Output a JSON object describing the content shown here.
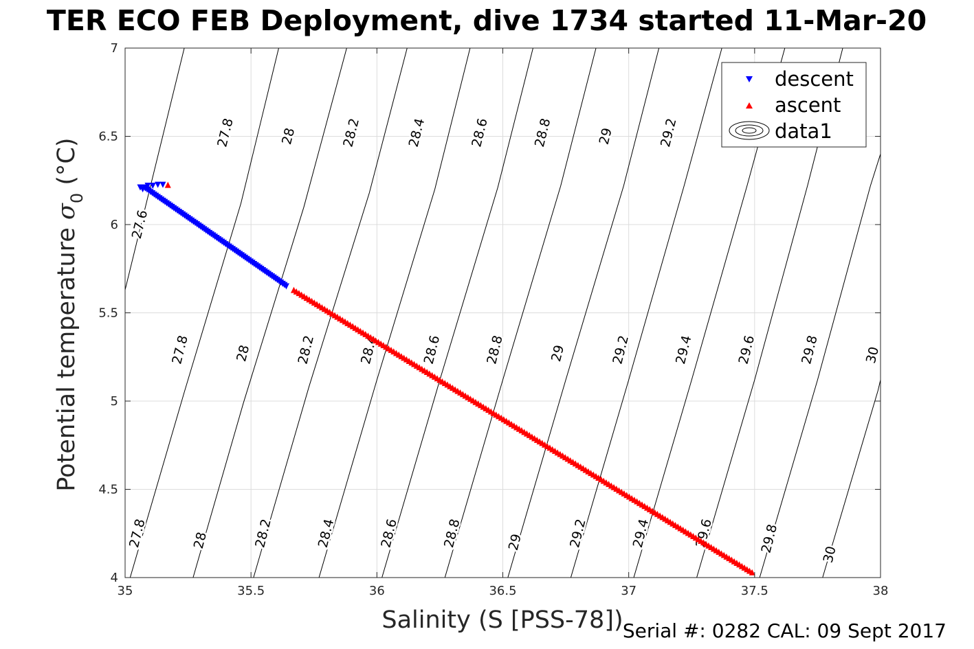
{
  "page": {
    "title": "TER ECO FEB Deployment, dive 1734 started 11-Mar-20",
    "footer": "Serial #: 0282  CAL: 09 Sept 2017"
  },
  "chart_data": {
    "type": "scatter",
    "xlabel": "Salinity (S [PSS-78])",
    "ylabel_main": "Potential temperature ",
    "ylabel_symbol": "σ",
    "ylabel_subscript": "0",
    "ylabel_unit": " (°C)",
    "xlim": [
      35,
      38
    ],
    "ylim": [
      4,
      7
    ],
    "xticks": [
      35,
      35.5,
      36,
      36.5,
      37,
      37.5,
      38
    ],
    "xtick_labels": [
      "35",
      "35.5",
      "36",
      "36.5",
      "37",
      "37.5",
      "38"
    ],
    "yticks": [
      4,
      4.5,
      5,
      5.5,
      6,
      6.5,
      7
    ],
    "ytick_labels": [
      "4",
      "4.5",
      "5",
      "5.5",
      "6",
      "6.5",
      "7"
    ],
    "grid": true,
    "legend_position": "top-right",
    "legend": [
      "descent",
      "ascent",
      "data1"
    ],
    "series": [
      {
        "name": "descent",
        "marker": "triangle-down",
        "color": "#0000ff",
        "start": [
          35.08,
          6.205
        ],
        "end": [
          35.64,
          5.65
        ],
        "count": 80,
        "surface_cluster": [
          [
            35.06,
            6.21
          ],
          [
            35.07,
            6.2
          ],
          [
            35.08,
            6.21
          ],
          [
            35.09,
            6.22
          ],
          [
            35.11,
            6.22
          ],
          [
            35.13,
            6.225
          ],
          [
            35.15,
            6.225
          ]
        ]
      },
      {
        "name": "ascent",
        "marker": "triangle-up",
        "color": "#ff0000",
        "start": [
          35.67,
          5.63
        ],
        "end": [
          37.49,
          4.03
        ],
        "count": 180,
        "surface_cluster": [
          [
            35.17,
            6.225
          ]
        ]
      }
    ],
    "contours": [
      {
        "level": "27.6",
        "points": [
          [
            35.0,
            5.63
          ],
          [
            35.235,
            7.0
          ]
        ]
      },
      {
        "level": "27.8",
        "points": [
          [
            35.02,
            4.0
          ],
          [
            35.235,
            5.05
          ],
          [
            35.46,
            6.12
          ],
          [
            35.61,
            7.0
          ]
        ]
      },
      {
        "level": "28",
        "points": [
          [
            35.27,
            4.0
          ],
          [
            35.47,
            4.99
          ],
          [
            35.71,
            6.1
          ],
          [
            35.88,
            7.0
          ]
        ]
      },
      {
        "level": "28.2",
        "points": [
          [
            35.51,
            4.0
          ],
          [
            35.73,
            5.08
          ],
          [
            35.97,
            6.18
          ],
          [
            36.12,
            7.0
          ]
        ]
      },
      {
        "level": "28.4",
        "points": [
          [
            35.77,
            4.0
          ],
          [
            36.0,
            5.12
          ],
          [
            36.23,
            6.2
          ],
          [
            36.37,
            7.0
          ]
        ]
      },
      {
        "level": "28.6",
        "points": [
          [
            36.02,
            4.0
          ],
          [
            36.25,
            5.12
          ],
          [
            36.48,
            6.21
          ],
          [
            36.62,
            7.0
          ]
        ]
      },
      {
        "level": "28.8",
        "points": [
          [
            36.27,
            4.0
          ],
          [
            36.5,
            5.12
          ],
          [
            36.73,
            6.22
          ],
          [
            36.87,
            7.0
          ]
        ]
      },
      {
        "level": "29",
        "points": [
          [
            36.52,
            4.0
          ],
          [
            36.75,
            5.12
          ],
          [
            36.98,
            6.22
          ],
          [
            37.12,
            7.0
          ]
        ]
      },
      {
        "level": "29.2",
        "points": [
          [
            36.77,
            4.0
          ],
          [
            37.0,
            5.12
          ],
          [
            37.22,
            6.22
          ],
          [
            37.37,
            7.0
          ]
        ]
      },
      {
        "level": "29.4",
        "points": [
          [
            37.02,
            4.0
          ],
          [
            37.25,
            5.12
          ],
          [
            37.47,
            6.22
          ],
          [
            37.62,
            7.0
          ]
        ]
      },
      {
        "level": "29.6",
        "points": [
          [
            37.27,
            4.0
          ],
          [
            37.5,
            5.12
          ],
          [
            37.71,
            6.22
          ],
          [
            37.85,
            7.0
          ]
        ]
      },
      {
        "level": "29.8",
        "points": [
          [
            37.52,
            4.0
          ],
          [
            37.75,
            5.12
          ],
          [
            37.96,
            6.22
          ],
          [
            38.0,
            6.4
          ]
        ]
      },
      {
        "level": "30",
        "points": [
          [
            37.77,
            4.0
          ],
          [
            37.99,
            5.06
          ],
          [
            38.0,
            5.12
          ]
        ]
      }
    ],
    "contour_labels": [
      {
        "text": "27.6",
        "at": [
          35.06,
          6.0
        ]
      },
      {
        "text": "27.8",
        "at": [
          35.4,
          6.52
        ]
      },
      {
        "text": "28",
        "at": [
          35.65,
          6.5
        ]
      },
      {
        "text": "28.2",
        "at": [
          35.9,
          6.52
        ]
      },
      {
        "text": "28.4",
        "at": [
          36.16,
          6.52
        ]
      },
      {
        "text": "28.6",
        "at": [
          36.41,
          6.52
        ]
      },
      {
        "text": "28.8",
        "at": [
          36.66,
          6.52
        ]
      },
      {
        "text": "29",
        "at": [
          36.91,
          6.5
        ]
      },
      {
        "text": "29.2",
        "at": [
          37.16,
          6.52
        ]
      },
      {
        "text": "27.8",
        "at": [
          35.22,
          5.29
        ]
      },
      {
        "text": "28",
        "at": [
          35.47,
          5.27
        ]
      },
      {
        "text": "28.2",
        "at": [
          35.72,
          5.29
        ]
      },
      {
        "text": "28.4",
        "at": [
          35.97,
          5.29
        ]
      },
      {
        "text": "28.6",
        "at": [
          36.22,
          5.29
        ]
      },
      {
        "text": "28.8",
        "at": [
          36.47,
          5.29
        ]
      },
      {
        "text": "29",
        "at": [
          36.72,
          5.27
        ]
      },
      {
        "text": "29.2",
        "at": [
          36.97,
          5.29
        ]
      },
      {
        "text": "29.4",
        "at": [
          37.22,
          5.29
        ]
      },
      {
        "text": "29.6",
        "at": [
          37.47,
          5.29
        ]
      },
      {
        "text": "29.8",
        "at": [
          37.72,
          5.29
        ]
      },
      {
        "text": "30",
        "at": [
          37.97,
          5.26
        ]
      },
      {
        "text": "27.8",
        "at": [
          35.05,
          4.25
        ]
      },
      {
        "text": "28",
        "at": [
          35.3,
          4.21
        ]
      },
      {
        "text": "28.2",
        "at": [
          35.55,
          4.25
        ]
      },
      {
        "text": "28.4",
        "at": [
          35.8,
          4.25
        ]
      },
      {
        "text": "28.6",
        "at": [
          36.05,
          4.25
        ]
      },
      {
        "text": "28.8",
        "at": [
          36.3,
          4.25
        ]
      },
      {
        "text": "29",
        "at": [
          36.55,
          4.2
        ]
      },
      {
        "text": "29.2",
        "at": [
          36.8,
          4.25
        ]
      },
      {
        "text": "29.4",
        "at": [
          37.05,
          4.25
        ]
      },
      {
        "text": "29.6",
        "at": [
          37.3,
          4.25
        ]
      },
      {
        "text": "29.8",
        "at": [
          37.56,
          4.22
        ]
      },
      {
        "text": "30",
        "at": [
          37.8,
          4.13
        ]
      }
    ]
  }
}
